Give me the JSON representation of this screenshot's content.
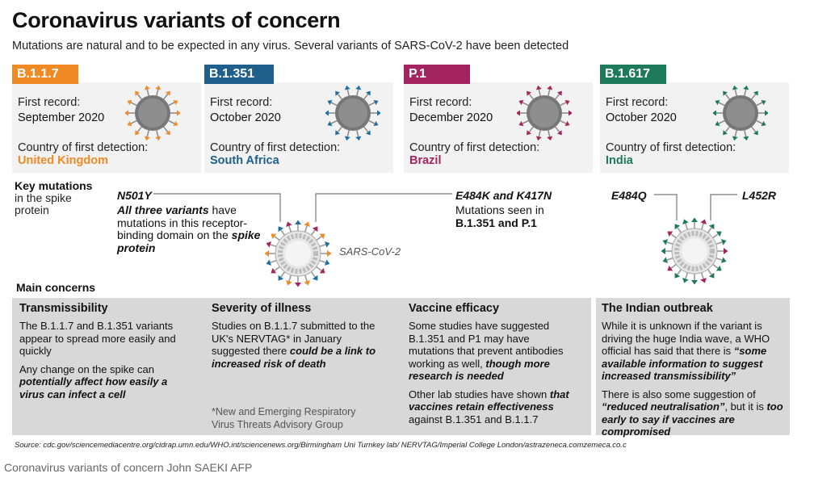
{
  "title": "Coronavirus variants of concern",
  "subtitle": "Mutations are natural and to be expected in any virus. Several variants of SARS-CoV-2 have been detected",
  "labels": {
    "first_record": "First record:",
    "country_detection": "Country of first detection:"
  },
  "variants": [
    {
      "name": "B.1.1.7",
      "color": "#f08a24",
      "first_record": "September 2020",
      "country": "United Kingdom"
    },
    {
      "name": "B.1.351",
      "color": "#1f5f8b",
      "first_record": "October 2020",
      "country": "South Africa"
    },
    {
      "name": "P.1",
      "color": "#a3245e",
      "first_record": "December 2020",
      "country": "Brazil"
    },
    {
      "name": "B.1.617",
      "color": "#1d7a5a",
      "first_record": "October 2020",
      "country": "India"
    }
  ],
  "key_mutations": {
    "title": "Key mutations",
    "subtitle": "in the spike protein",
    "n501y": "N501Y",
    "n501y_desc_bold": "All three variants",
    "n501y_desc_1": " have mutations in this receptor-binding domain on the ",
    "n501y_desc_bold2": "spike protein",
    "e484k": "E484K and K417N",
    "e484k_desc": "Mutations seen in",
    "e484k_desc_bold": "B.1.351 and P.1",
    "sars_label": "SARS-CoV-2",
    "e484q": "E484Q",
    "l452r": "L452R"
  },
  "main_concerns": {
    "title": "Main concerns",
    "transmissibility": {
      "heading": "Transmissibility",
      "p1": "The B.1.1.7 and B.1.351 variants appear to spread more easily and quickly",
      "p2_a": "Any change on the spike can ",
      "p2_b": "potentially affect how easily a virus can infect a cell"
    },
    "severity": {
      "heading": "Severity of illness",
      "p1_a": "Studies on B.1.1.7 submitted to the UK's NERVTAG* in January suggested there ",
      "p1_b": "could be a link to increased risk of death",
      "footnote": "*New and Emerging Respiratory Virus Threats Advisory Group"
    },
    "vaccine": {
      "heading": "Vaccine efficacy",
      "p1_a": "Some studies have suggested B.1.351 and P1 may have mutations that prevent antibodies working as well, ",
      "p1_b": "though more research is needed",
      "p2_a": "Other lab studies have shown ",
      "p2_b": "that vaccines retain effectiveness",
      "p2_c": " against B.1.351 and B.1.1.7"
    },
    "india": {
      "heading": "The Indian outbreak",
      "p1_a": "While it is unknown if the variant is driving the huge India wave, a WHO official has said that there is ",
      "p1_b": "“some available information to suggest increased transmissibility”",
      "p2_a": "There is also some suggestion of ",
      "p2_b": "“reduced neutralisation”",
      "p2_c": ", but it is ",
      "p2_d": "too early to say if vaccines are compromised"
    }
  },
  "source": "Source: cdc.gov/sciencemediacentre.org/cidrap.umn.edu/WHO.int/sciencenews.org/Birmingham Uni Turnkey lab/ NERVTAG/Imperial College London/astrazeneca.comzemeca.co.c",
  "caption": "Coronavirus variants of concern  John SAEKI AFP"
}
